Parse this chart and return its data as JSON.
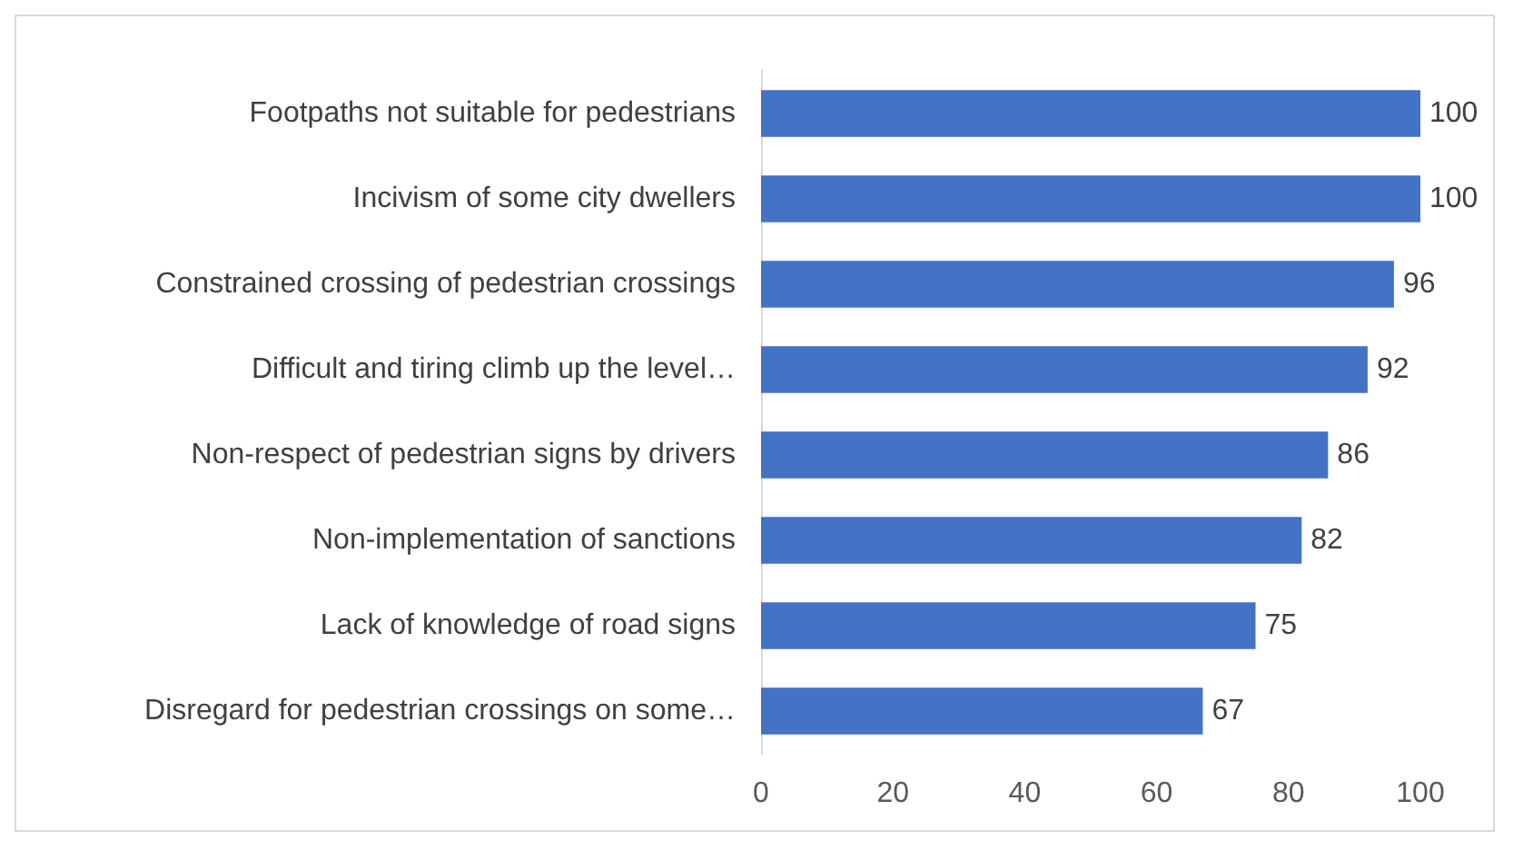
{
  "chart_data": {
    "type": "bar",
    "orientation": "horizontal",
    "categories": [
      "Footpaths not suitable for pedestrians",
      "Incivism of some city dwellers",
      "Constrained crossing of pedestrian crossings",
      "Difficult and tiring climb up the level…",
      "Non-respect of pedestrian signs by drivers",
      "Non-implementation of sanctions",
      "Lack of knowledge of road signs",
      "Disregard for pedestrian crossings on some…"
    ],
    "values": [
      100,
      100,
      96,
      92,
      86,
      82,
      75,
      67
    ],
    "color": "#4472c4",
    "xlim": [
      0,
      100
    ],
    "xticks": [
      0,
      20,
      40,
      60,
      80,
      100
    ],
    "data_labels": true,
    "grid": false
  }
}
